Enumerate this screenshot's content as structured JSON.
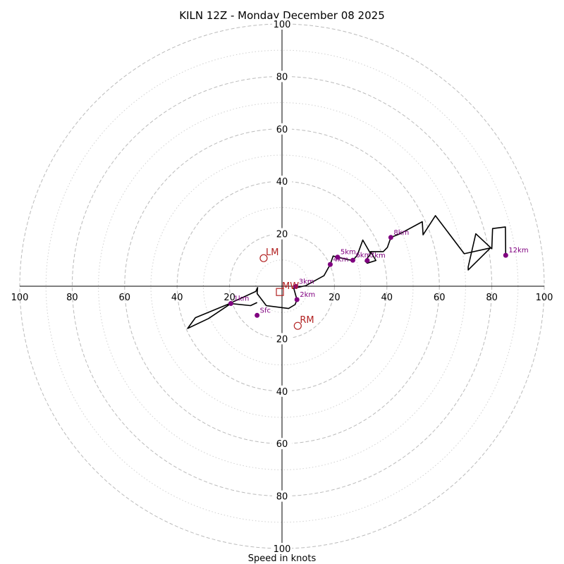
{
  "chart_data": {
    "type": "hodograph",
    "title": "KILN 12Z - Monday December 08 2025",
    "xlabel": "Speed in knots",
    "units": "knots",
    "max_ring": 100,
    "major_rings": [
      20,
      40,
      60,
      80,
      100
    ],
    "minor_rings": [
      10,
      30,
      50,
      70,
      90
    ],
    "tick_values": [
      20,
      40,
      60,
      80,
      100
    ],
    "colors": {
      "trace": "#000000",
      "height_marker": "#800080",
      "storm_motion": "#b22222",
      "major_grid": "#bbbbbb",
      "minor_grid": "#d0d0d0",
      "axes": "#000000"
    },
    "trace": [
      [
        -9.5,
        -6.2
      ],
      [
        -12,
        -7.4
      ],
      [
        -19.5,
        -6.6
      ],
      [
        -28,
        -12.3
      ],
      [
        -36,
        -16.1
      ],
      [
        -33,
        -12
      ],
      [
        -20.7,
        -6.9
      ],
      [
        -10,
        -2
      ],
      [
        -9.3,
        -0.5
      ],
      [
        -9.5,
        -2.8
      ],
      [
        -6,
        -7.4
      ],
      [
        2.5,
        -8.5
      ],
      [
        5,
        -7
      ],
      [
        5.7,
        -5.1
      ],
      [
        4.5,
        -0.8
      ],
      [
        8,
        0
      ],
      [
        9,
        0.2
      ],
      [
        16,
        4
      ],
      [
        18.4,
        8.3
      ],
      [
        19.5,
        11.5
      ],
      [
        21.2,
        11.1
      ],
      [
        25.3,
        10.1
      ],
      [
        27,
        9.9
      ],
      [
        28.7,
        11.8
      ],
      [
        30.8,
        17.6
      ],
      [
        33.8,
        12.4
      ],
      [
        31.7,
        9.6
      ],
      [
        32.5,
        8.8
      ],
      [
        35.8,
        9.8
      ],
      [
        33.8,
        13.2
      ],
      [
        38.6,
        13.2
      ],
      [
        40.2,
        14.8
      ],
      [
        41.5,
        18.6
      ],
      [
        45,
        20
      ],
      [
        53.5,
        24.6
      ],
      [
        53.8,
        19.6
      ],
      [
        58.5,
        26.9
      ],
      [
        69.5,
        12.4
      ],
      [
        79.5,
        14.6
      ],
      [
        71,
        6.2
      ],
      [
        71,
        7.4
      ],
      [
        73.9,
        20
      ],
      [
        80,
        14.3
      ],
      [
        80.3,
        22
      ],
      [
        85.2,
        22.6
      ],
      [
        85.3,
        11.8
      ]
    ],
    "height_markers": [
      {
        "label": "Sfc",
        "u": -9.5,
        "v": -11.1
      },
      {
        "label": "1km",
        "u": -19.5,
        "v": -6.6
      },
      {
        "label": "2km",
        "u": 5.7,
        "v": -5.1
      },
      {
        "label": "3km",
        "u": 5.3,
        "v": -0.1
      },
      {
        "label": "4km",
        "u": 18.4,
        "v": 8.3
      },
      {
        "label": "5km",
        "u": 21.2,
        "v": 11.1
      },
      {
        "label": "6km",
        "u": 27,
        "v": 9.9
      },
      {
        "label": "7km",
        "u": 32.5,
        "v": 9.8
      },
      {
        "label": "8km",
        "u": 41.5,
        "v": 18.6
      },
      {
        "label": "12km",
        "u": 85.3,
        "v": 11.8
      }
    ],
    "storm_motions": [
      {
        "label": "LM",
        "u": -7,
        "v": 10.7,
        "marker": "circle"
      },
      {
        "label": "RM",
        "u": 6,
        "v": -15.1,
        "marker": "circle"
      },
      {
        "label": "MW",
        "u": -0.8,
        "v": -2.2,
        "marker": "square"
      }
    ]
  }
}
